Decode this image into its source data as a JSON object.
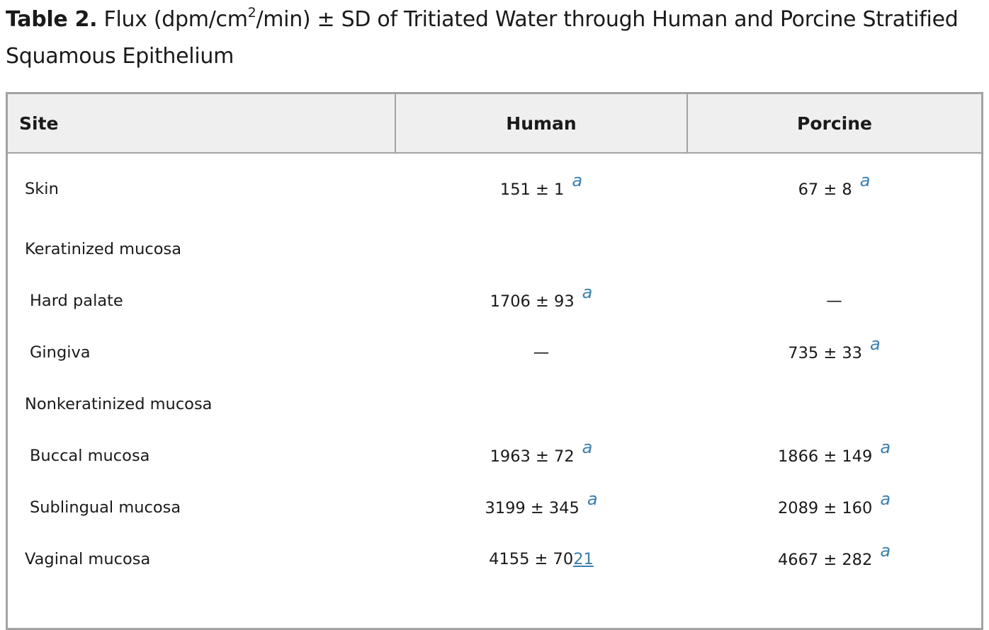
{
  "caption": {
    "label": "Table 2.",
    "text_before_sup": " Flux (dpm/cm",
    "sup": "2",
    "text_after_sup": "/min) ± SD of Tritiated Water through Human and Porcine Stratified Squamous Epithelium"
  },
  "table": {
    "columns": [
      "Site",
      "Human",
      "Porcine"
    ],
    "footnote_mark": "a",
    "rows": [
      {
        "site": "Skin",
        "human": "151 ± 1",
        "human_fn": true,
        "porcine": "67 ± 8",
        "porcine_fn": true
      },
      {
        "site": "Keratinized mucosa",
        "human": "",
        "human_fn": false,
        "porcine": "",
        "porcine_fn": false
      },
      {
        "site": "Hard palate",
        "human": "1706 ± 93",
        "human_fn": true,
        "porcine": "—",
        "porcine_fn": false
      },
      {
        "site": "Gingiva",
        "human": "—",
        "human_fn": false,
        "porcine": "735 ± 33",
        "porcine_fn": true
      },
      {
        "site": "Nonkeratinized mucosa",
        "human": "",
        "human_fn": false,
        "porcine": "",
        "porcine_fn": false
      },
      {
        "site": "Buccal mucosa",
        "human": "1963 ± 72",
        "human_fn": true,
        "porcine": "1866 ± 149",
        "porcine_fn": true
      },
      {
        "site": "Sublingual mucosa",
        "human": "3199 ± 345",
        "human_fn": true,
        "porcine": "2089 ± 160",
        "porcine_fn": true
      },
      {
        "site": "Vaginal mucosa",
        "human": "4155 ± 70",
        "human_ref": "21",
        "human_fn": false,
        "porcine": "4667 ± 282",
        "porcine_fn": true
      }
    ]
  }
}
